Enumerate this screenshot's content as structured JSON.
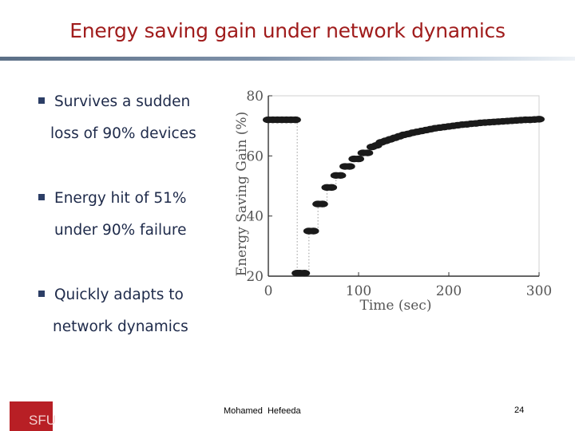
{
  "slide": {
    "title": "Energy saving gain under network dynamics",
    "bullets": [
      {
        "line1": "Survives a sudden",
        "line2": "loss of 90% devices"
      },
      {
        "line1": "Energy hit of 51%",
        "line2": "under 90% failure"
      },
      {
        "line1": "Quickly adapts to",
        "line2": "network dynamics"
      }
    ],
    "footer": {
      "logo_text": "SFU",
      "author": "Mohamed Hefeeda",
      "page_number": "24"
    }
  },
  "chart_data": {
    "type": "scatter",
    "xlabel": "Time (sec)",
    "ylabel": "Energy Saving Gain (%)",
    "xlim": [
      0,
      300
    ],
    "ylim": [
      20,
      80
    ],
    "xticks": [
      0,
      100,
      200,
      300
    ],
    "yticks": [
      20,
      40,
      60,
      80
    ],
    "grid": false,
    "marker_color": "#1a1a1a",
    "series": [
      {
        "x": [
          0,
          5,
          10,
          15,
          20,
          25,
          30,
          32,
          35,
          40,
          45,
          50,
          55,
          60,
          65,
          70,
          75,
          80,
          85,
          90,
          95,
          100,
          105,
          110,
          115,
          120,
          125,
          130,
          135,
          140,
          145,
          150,
          155,
          160,
          165,
          170,
          175,
          180,
          185,
          190,
          195,
          200,
          205,
          210,
          215,
          220,
          225,
          230,
          235,
          240,
          245,
          250,
          255,
          260,
          265,
          270,
          275,
          280,
          285,
          290,
          295,
          300
        ],
        "y": [
          72,
          72,
          72,
          72,
          72,
          72,
          72,
          21,
          21,
          21,
          35,
          35,
          44,
          44,
          49.5,
          49.5,
          53.5,
          53.5,
          56.5,
          56.5,
          59,
          59,
          61,
          61,
          63,
          63.5,
          64.5,
          65,
          65.5,
          66,
          66.5,
          67,
          67.3,
          67.7,
          68,
          68.3,
          68.6,
          68.9,
          69.2,
          69.4,
          69.6,
          69.8,
          70,
          70.2,
          70.4,
          70.5,
          70.7,
          70.8,
          71,
          71.1,
          71.2,
          71.3,
          71.4,
          71.5,
          71.6,
          71.7,
          71.8,
          71.9,
          72,
          72,
          72.1,
          72.2
        ]
      }
    ]
  }
}
